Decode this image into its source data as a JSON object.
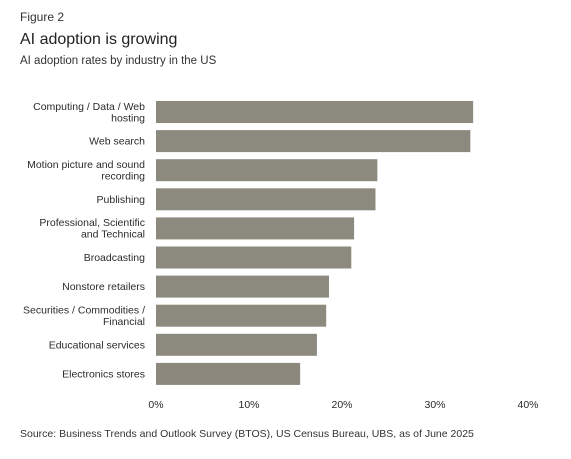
{
  "figure_label": "Figure 2",
  "source": "Source: Business Trends and Outlook Survey (BTOS), US Census Bureau, UBS, as of June 2025",
  "colors": {
    "bar": "#8c8a7f",
    "bar_last": "#8c887d"
  },
  "chart_data": {
    "type": "bar",
    "orientation": "horizontal",
    "title": "AI adoption is growing",
    "subtitle": "AI adoption rates by industry in the US",
    "categories": [
      [
        "Computing / Data / Web",
        "hosting"
      ],
      [
        "Web search"
      ],
      [
        "Motion picture and sound",
        "recording"
      ],
      [
        "Publishing"
      ],
      [
        "Professional, Scientific",
        "and Technical"
      ],
      [
        "Broadcasting"
      ],
      [
        "Nonstore retailers"
      ],
      [
        "Securities / Commodities /",
        "Financial"
      ],
      [
        "Educational services"
      ],
      [
        "Electronics stores"
      ]
    ],
    "values": [
      34.1,
      33.8,
      23.8,
      23.6,
      21.3,
      21.0,
      18.6,
      18.3,
      17.3,
      15.5
    ],
    "unit": "%",
    "xlim": [
      0,
      40
    ],
    "xticks": [
      "0%",
      "10%",
      "20%",
      "30%",
      "40%"
    ],
    "grid": false,
    "legend": "none"
  }
}
